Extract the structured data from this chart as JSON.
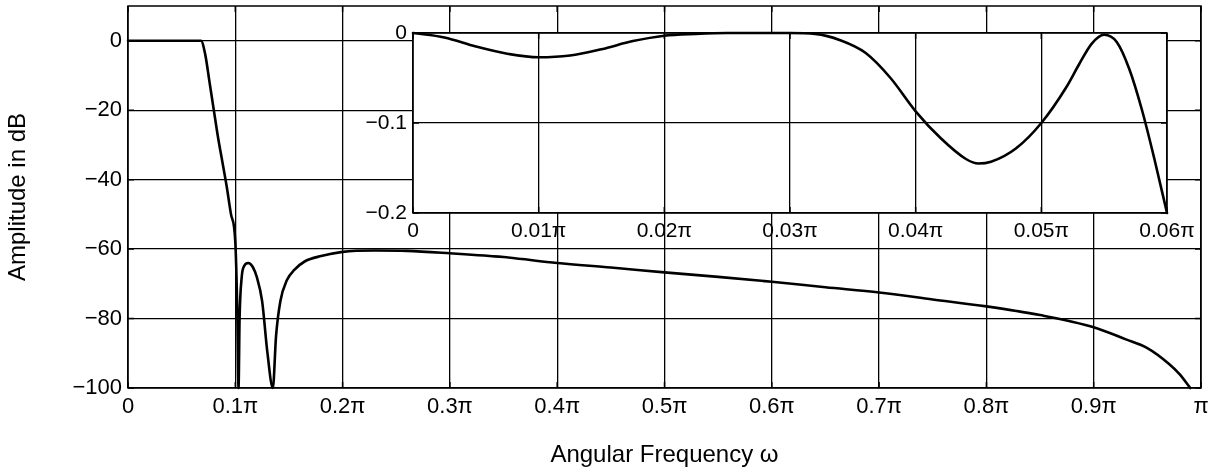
{
  "chart_data": [
    {
      "type": "line",
      "xlabel": "Angular Frequency ω",
      "ylabel": "Amplitude in dB",
      "xlim": [
        0,
        3.1416
      ],
      "ylim": [
        -100,
        10
      ],
      "xticks": [
        0,
        {
          "value": 0.3142,
          "label": "0.1π"
        },
        {
          "value": 0.6283,
          "label": "0.2π"
        },
        {
          "value": 0.9425,
          "label": "0.3π"
        },
        {
          "value": 1.2566,
          "label": "0.4π"
        },
        {
          "value": 1.5708,
          "label": "0.5π"
        },
        {
          "value": 1.885,
          "label": "0.6π"
        },
        {
          "value": 2.1991,
          "label": "0.7π"
        },
        {
          "value": 2.5133,
          "label": "0.8π"
        },
        {
          "value": 2.8274,
          "label": "0.9π"
        },
        {
          "value": 3.1416,
          "label": "π"
        }
      ],
      "yticks": [
        -100,
        -80,
        -60,
        -40,
        -20,
        0
      ],
      "grid": true,
      "marker": "none",
      "line_style": "solid",
      "series": [
        {
          "color": "#000000",
          "x": [
            0,
            0.0628,
            0.1257,
            0.1885,
            0.2136,
            0.2262,
            0.2388,
            0.2513,
            0.2639,
            0.2765,
            0.289,
            0.3016,
            0.3142,
            0.3204,
            0.3236,
            0.3267,
            0.333,
            0.3393,
            0.3519,
            0.3644,
            0.377,
            0.3927,
            0.4084,
            0.4241,
            0.4335,
            0.4461,
            0.465,
            0.4869,
            0.5184,
            0.5655,
            0.6283,
            0.7226,
            0.8168,
            0.9425,
            1.0996,
            1.2566,
            1.4137,
            1.5708,
            1.7279,
            1.885,
            2.042,
            2.1991,
            2.3562,
            2.5133,
            2.6704,
            2.8274,
            2.9217,
            2.9845,
            3.0473,
            3.0788,
            3.1102
          ],
          "values": [
            0,
            0,
            0,
            0,
            0,
            -4,
            -12,
            -20,
            -28,
            -35,
            -42,
            -50,
            -58,
            -80,
            -100,
            -80,
            -68,
            -65,
            -64,
            -65,
            -68,
            -75,
            -90,
            -100,
            -85,
            -75,
            -69,
            -66,
            -63.5,
            -62,
            -60.8,
            -60.4,
            -60.5,
            -61.2,
            -62.3,
            -64,
            -65.3,
            -66.7,
            -68,
            -69.4,
            -71,
            -72.5,
            -74.5,
            -76.5,
            -79,
            -82.5,
            -86,
            -88.5,
            -93,
            -96,
            -100
          ]
        }
      ]
    },
    {
      "type": "line",
      "xlim": [
        0,
        0.1885
      ],
      "ylim": [
        -0.2,
        0
      ],
      "xticks": [
        0,
        {
          "value": 0.03142,
          "label": "0.01π"
        },
        {
          "value": 0.06283,
          "label": "0.02π"
        },
        {
          "value": 0.09425,
          "label": "0.03π"
        },
        {
          "value": 0.12566,
          "label": "0.04π"
        },
        {
          "value": 0.15708,
          "label": "0.05π"
        },
        {
          "value": 0.1885,
          "label": "0.06π"
        }
      ],
      "yticks": [
        -0.2,
        -0.1,
        0
      ],
      "grid": true,
      "marker": "none",
      "line_style": "solid",
      "series": [
        {
          "color": "#000000",
          "x": [
            0,
            0.00785,
            0.01571,
            0.02356,
            0.03142,
            0.03927,
            0.04712,
            0.05498,
            0.06283,
            0.07069,
            0.07854,
            0.09425,
            0.10053,
            0.10681,
            0.1131,
            0.11938,
            0.12566,
            0.13195,
            0.13823,
            0.14137,
            0.14451,
            0.1508,
            0.15708,
            0.16336,
            0.1665,
            0.16965,
            0.17279,
            0.17593,
            0.17907,
            0.18221,
            0.18535,
            0.1885
          ],
          "values": [
            0,
            -0.005,
            -0.015,
            -0.023,
            -0.027,
            -0.025,
            -0.018,
            -0.009,
            -0.003,
            -0.001,
            0,
            0,
            -0.001,
            -0.008,
            -0.022,
            -0.05,
            -0.087,
            -0.117,
            -0.14,
            -0.145,
            -0.143,
            -0.128,
            -0.1,
            -0.06,
            -0.035,
            -0.012,
            -0.002,
            -0.01,
            -0.04,
            -0.085,
            -0.14,
            -0.2
          ]
        }
      ]
    }
  ]
}
